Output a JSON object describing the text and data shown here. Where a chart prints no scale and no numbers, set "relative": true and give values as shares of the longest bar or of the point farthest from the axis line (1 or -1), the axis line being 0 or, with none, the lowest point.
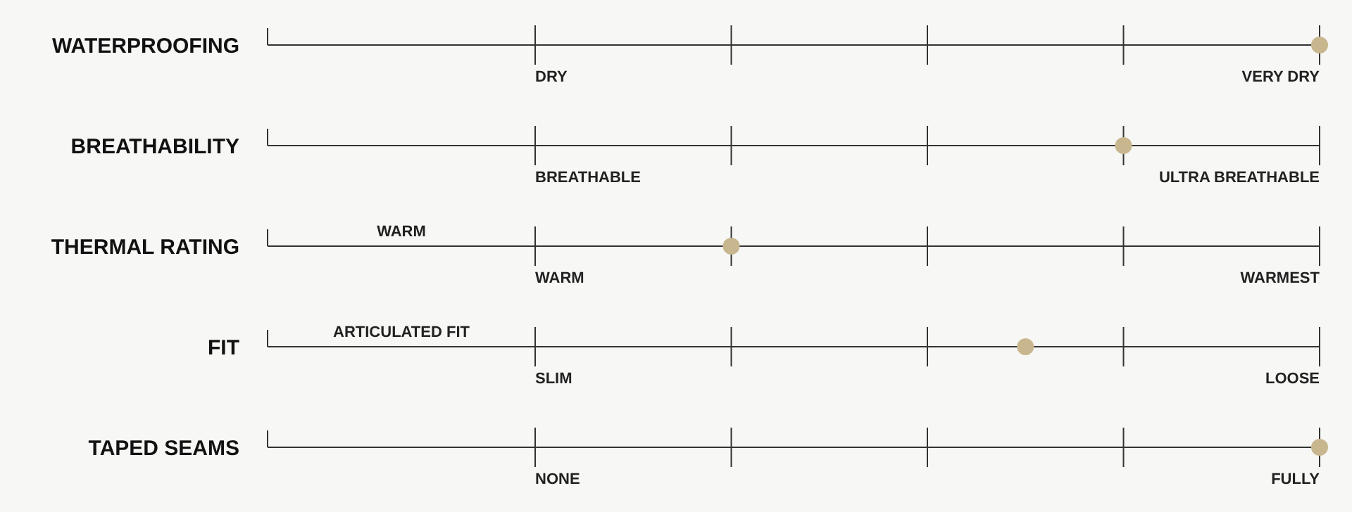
{
  "chart_data": {
    "type": "scatter",
    "orientation": "horizontal",
    "relative": true,
    "grid": true,
    "categories": [
      "WATERPROOFING",
      "BREATHABILITY",
      "THERMAL RATING",
      "FIT",
      "TAPED SEAMS"
    ],
    "values": [
      1,
      0.75,
      0.25,
      0.625,
      1
    ],
    "color": "#c8b68f",
    "marker": "circle",
    "annotations": [
      "DRY",
      "VERY DRY",
      "BREATHABLE",
      "ULTRA BREATHABLE",
      "WARM",
      "WARM",
      "WARMEST",
      "ARTICULATED FIT",
      "SLIM",
      "LOOSE",
      "NONE",
      "FULLY"
    ]
  }
}
